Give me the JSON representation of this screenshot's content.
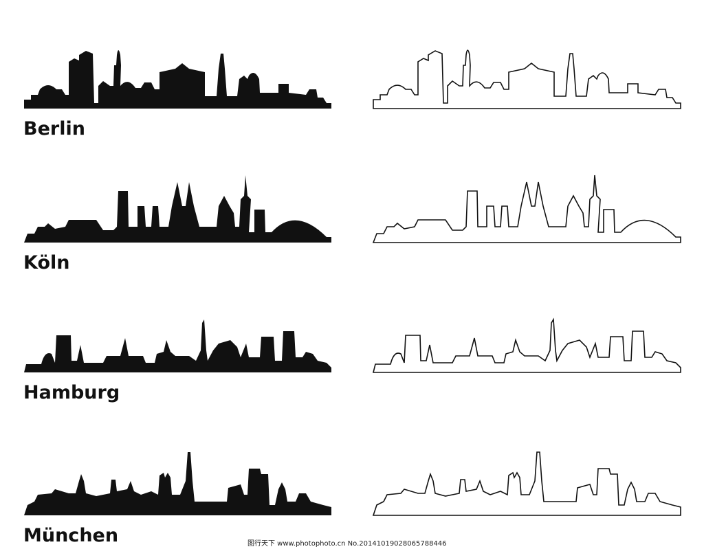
{
  "labels": [
    "Berlin",
    "Köln",
    "Hamburg",
    "München"
  ],
  "watermark": "图行天下 www.photophoto.cn No.20141019028065788446"
}
